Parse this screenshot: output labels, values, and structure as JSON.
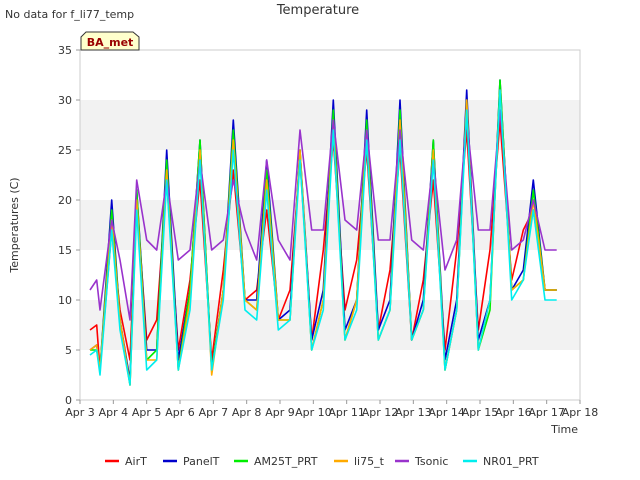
{
  "nodata_text": "No data for f_li77_temp",
  "site_badge": "BA_met",
  "chart_data": {
    "type": "line",
    "title": "Temperature",
    "xlabel": "Time",
    "ylabel": "Temperatures (C)",
    "x_unit": "day of April",
    "xlim": [
      3,
      18
    ],
    "ylim": [
      0,
      35
    ],
    "y_ticks": [
      0,
      5,
      10,
      15,
      20,
      25,
      30,
      35
    ],
    "x_ticks": [
      {
        "x": 3,
        "label": "Apr 3"
      },
      {
        "x": 4,
        "label": "Apr 4"
      },
      {
        "x": 5,
        "label": "Apr 5"
      },
      {
        "x": 6,
        "label": "Apr 6"
      },
      {
        "x": 7,
        "label": "Apr 7"
      },
      {
        "x": 8,
        "label": "Apr 8"
      },
      {
        "x": 9,
        "label": "Apr 9"
      },
      {
        "x": 10,
        "label": "Apr 10"
      },
      {
        "x": 11,
        "label": "Apr 11"
      },
      {
        "x": 12,
        "label": "Apr 12"
      },
      {
        "x": 13,
        "label": "Apr 13"
      },
      {
        "x": 14,
        "label": "Apr 14"
      },
      {
        "x": 15,
        "label": "Apr 15"
      },
      {
        "x": 16,
        "label": "Apr 16"
      },
      {
        "x": 17,
        "label": "Apr 17"
      },
      {
        "x": 18,
        "label": "Apr 18"
      }
    ],
    "grid": "horizontal bands",
    "legend_position": "bottom",
    "series": [
      {
        "name": "AirT",
        "color": "#ff0000",
        "x": [
          3.3,
          3.5,
          3.6,
          3.95,
          4.2,
          4.5,
          4.7,
          5.0,
          5.3,
          5.6,
          5.95,
          6.3,
          6.6,
          6.95,
          7.3,
          7.6,
          7.95,
          8.3,
          8.6,
          8.95,
          9.3,
          9.6,
          9.95,
          10.3,
          10.6,
          10.95,
          11.3,
          11.6,
          11.95,
          12.3,
          12.6,
          12.95,
          13.3,
          13.6,
          13.95,
          14.3,
          14.6,
          14.95,
          15.3,
          15.6,
          15.95,
          16.3,
          16.6,
          16.95,
          17.3
        ],
        "y": [
          7,
          7.5,
          3,
          17,
          9,
          4,
          20,
          6,
          8,
          22,
          5,
          12,
          22,
          4,
          13,
          23,
          10,
          11,
          19,
          8,
          11,
          24,
          6,
          15,
          26,
          9,
          14,
          25,
          7,
          13,
          25,
          6,
          12,
          22,
          5,
          15,
          27,
          7,
          15,
          28,
          12,
          17,
          19,
          11,
          11
        ]
      },
      {
        "name": "PanelT",
        "color": "#0000cc",
        "x": [
          3.3,
          3.5,
          3.6,
          3.95,
          4.2,
          4.5,
          4.7,
          5.0,
          5.3,
          5.6,
          5.95,
          6.3,
          6.6,
          6.95,
          7.3,
          7.6,
          7.95,
          8.3,
          8.6,
          8.95,
          9.3,
          9.6,
          9.95,
          10.3,
          10.6,
          10.95,
          11.3,
          11.6,
          11.95,
          12.3,
          12.6,
          12.95,
          13.3,
          13.6,
          13.95,
          14.3,
          14.6,
          14.95,
          15.3,
          15.6,
          15.95,
          16.3,
          16.6,
          16.95,
          17.3
        ],
        "y": [
          5,
          5.5,
          3,
          20,
          8,
          2,
          21,
          5,
          5,
          25,
          4,
          11,
          26,
          3,
          11,
          28,
          10,
          10,
          24,
          8,
          9,
          25,
          6,
          11,
          30,
          7,
          10,
          29,
          7,
          10,
          30,
          6,
          10,
          26,
          4,
          10,
          31,
          6,
          10,
          32,
          11,
          13,
          22,
          11,
          11
        ]
      },
      {
        "name": "AM25T_PRT",
        "color": "#00ee00",
        "x": [
          3.3,
          3.5,
          3.6,
          3.95,
          4.2,
          4.5,
          4.7,
          5.0,
          5.3,
          5.6,
          5.95,
          6.3,
          6.6,
          6.95,
          7.3,
          7.6,
          7.95,
          8.3,
          8.6,
          8.95,
          9.3,
          9.6,
          9.95,
          10.3,
          10.6,
          10.95,
          11.3,
          11.6,
          11.95,
          12.3,
          12.6,
          12.95,
          13.3,
          13.6,
          13.95,
          14.3,
          14.6,
          14.95,
          15.3,
          15.6,
          15.95,
          16.3,
          16.6,
          16.95,
          17.3
        ],
        "y": [
          5,
          5,
          3,
          19,
          8,
          1.5,
          21,
          4,
          5,
          24,
          3,
          11,
          26,
          3,
          11,
          27,
          10,
          9,
          23,
          8,
          8,
          25,
          5,
          10,
          29,
          6,
          10,
          28,
          6,
          9,
          29,
          6,
          9,
          26,
          3,
          9,
          30,
          5,
          9,
          32,
          11,
          12,
          21,
          11,
          11
        ]
      },
      {
        "name": "li75_t",
        "color": "#ffaa00",
        "x": [
          3.3,
          3.5,
          3.6,
          3.95,
          4.2,
          4.5,
          4.7,
          5.0,
          5.3,
          5.6,
          5.95,
          6.3,
          6.6,
          6.95,
          7.3,
          7.6,
          7.95,
          8.3,
          8.6,
          8.95,
          9.3,
          9.6,
          9.95,
          10.3,
          10.6,
          10.95,
          11.3,
          11.6,
          11.95,
          12.3,
          12.6,
          12.95,
          13.3,
          13.6,
          13.95,
          14.3,
          14.6,
          14.95,
          15.3,
          15.6,
          15.95,
          16.3,
          16.6,
          16.95,
          17.3
        ],
        "y": [
          5,
          5.5,
          3,
          18,
          8,
          1.5,
          20,
          4,
          4,
          23,
          3,
          10,
          25,
          2.5,
          11,
          26,
          10,
          9,
          22,
          8,
          8,
          25,
          5,
          10,
          28,
          6,
          10,
          27,
          6,
          9,
          28,
          6,
          9,
          25,
          3,
          9,
          30,
          5,
          10,
          31,
          11,
          12,
          20,
          11,
          11
        ]
      },
      {
        "name": "Tsonic",
        "color": "#9933cc",
        "x": [
          3.3,
          3.5,
          3.6,
          3.95,
          4.2,
          4.5,
          4.7,
          5.0,
          5.3,
          5.6,
          5.95,
          6.3,
          6.6,
          6.95,
          7.3,
          7.6,
          7.95,
          8.3,
          8.6,
          8.95,
          9.3,
          9.6,
          9.95,
          10.3,
          10.6,
          10.95,
          11.3,
          11.6,
          11.95,
          12.3,
          12.6,
          12.95,
          13.3,
          13.6,
          13.95,
          14.3,
          14.6,
          14.95,
          15.3,
          15.6,
          15.95,
          16.3,
          16.6,
          16.95,
          17.3
        ],
        "y": [
          11,
          12,
          9,
          18,
          14,
          8,
          22,
          16,
          15,
          22,
          14,
          15,
          24,
          15,
          16,
          22,
          17,
          14,
          24,
          16,
          14,
          27,
          17,
          17,
          28,
          18,
          17,
          27,
          16,
          16,
          27,
          16,
          15,
          24,
          13,
          16,
          28,
          17,
          17,
          29,
          15,
          16,
          20,
          15,
          15
        ]
      },
      {
        "name": "NR01_PRT",
        "color": "#00eeee",
        "x": [
          3.3,
          3.5,
          3.6,
          3.95,
          4.2,
          4.5,
          4.7,
          5.0,
          5.3,
          5.6,
          5.95,
          6.3,
          6.6,
          6.95,
          7.3,
          7.6,
          7.95,
          8.3,
          8.6,
          8.95,
          9.3,
          9.6,
          9.95,
          10.3,
          10.6,
          10.95,
          11.3,
          11.6,
          11.95,
          12.3,
          12.6,
          12.95,
          13.3,
          13.6,
          13.95,
          14.3,
          14.6,
          14.95,
          15.3,
          15.6,
          15.95,
          16.3,
          16.6,
          16.95,
          17.3
        ],
        "y": [
          4.5,
          5,
          2.5,
          17,
          7,
          1.5,
          19,
          3,
          4,
          22,
          3,
          9,
          24,
          3,
          10,
          25,
          9,
          8,
          21,
          7,
          8,
          24,
          5,
          9,
          27,
          6,
          9,
          26,
          6,
          9,
          26,
          6,
          9,
          24,
          3,
          9,
          29,
          5,
          10,
          31,
          10,
          12,
          19,
          10,
          10
        ]
      }
    ]
  }
}
